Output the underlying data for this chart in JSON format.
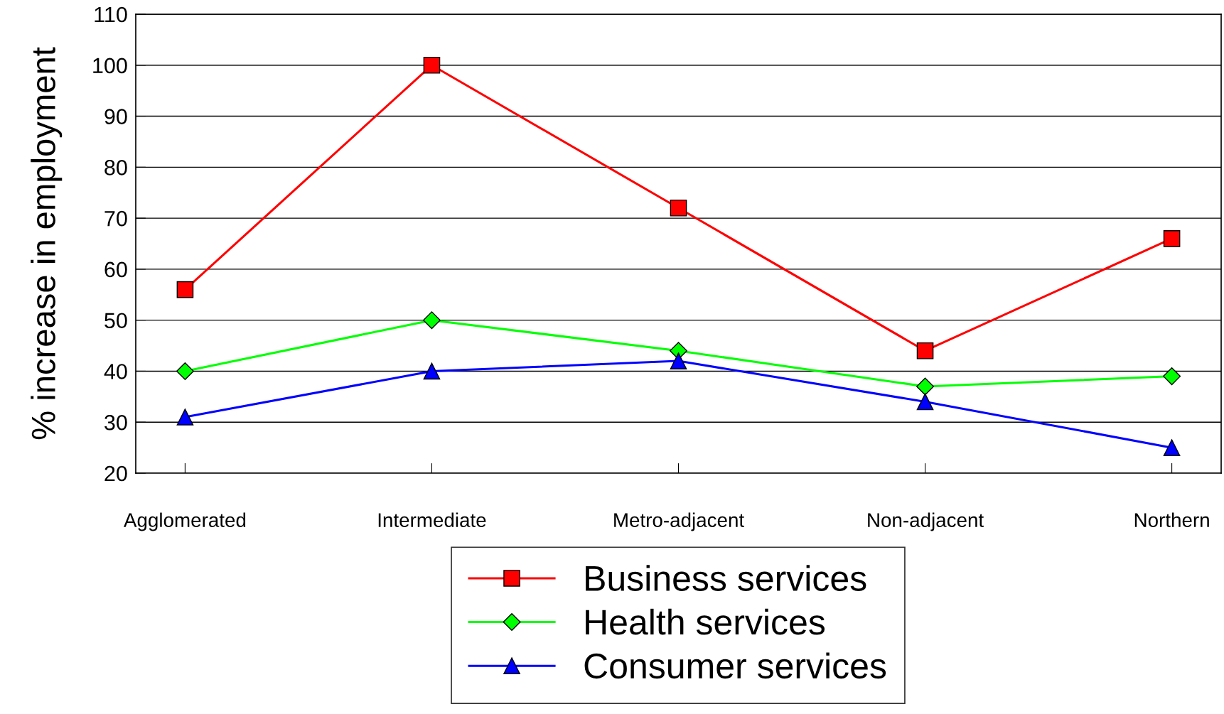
{
  "chart_data": {
    "type": "line",
    "ylabel": "% increase in employment",
    "categories": [
      "Agglomerated",
      "Intermediate",
      "Metro-adjacent",
      "Non-adjacent",
      "Northern"
    ],
    "series": [
      {
        "name": "Business services",
        "color": "#ff0000",
        "marker": "square",
        "values": [
          56,
          100,
          72,
          44,
          66
        ]
      },
      {
        "name": "Health services",
        "color": "#00ff00",
        "marker": "diamond",
        "values": [
          40,
          50,
          44,
          37,
          39
        ]
      },
      {
        "name": "Consumer services",
        "color": "#0000ff",
        "marker": "triangle",
        "values": [
          31,
          40,
          42,
          34,
          25
        ]
      }
    ],
    "ylim": [
      20,
      110
    ],
    "yticks": [
      20,
      30,
      40,
      50,
      60,
      70,
      80,
      90,
      100,
      110
    ],
    "grid": "y",
    "legend": "bottom",
    "line_style": "solid"
  }
}
